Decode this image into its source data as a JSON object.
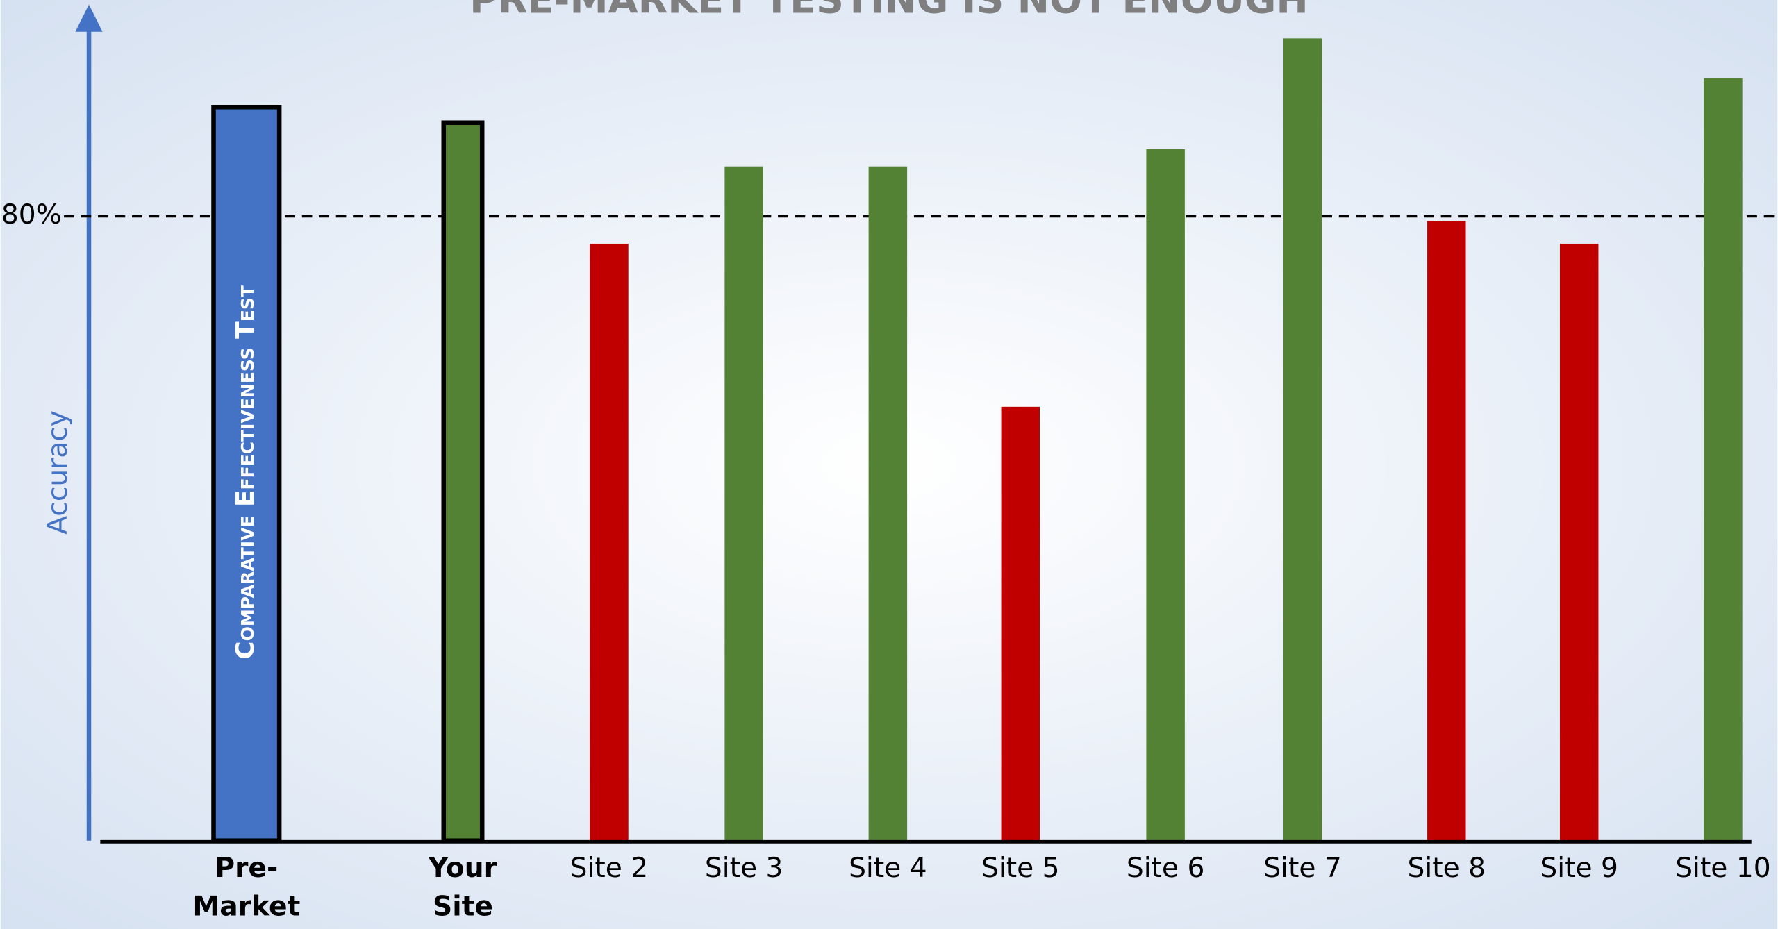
{
  "chart_data": {
    "type": "bar",
    "title": "PRE-MARKET TESTING IS NOT ENOUGH",
    "y_label": "Accuracy",
    "bar_annotation": "Comparative Effectiveness Test",
    "categories": [
      "Pre-Market Testing",
      "Your Site",
      "Site 2",
      "Site 3",
      "Site 4",
      "Site 5",
      "Site 6",
      "Site 7",
      "Site 8",
      "Site 9",
      "Site 10"
    ],
    "values": [
      94,
      92,
      76.5,
      86.4,
      86.4,
      55.6,
      88.6,
      102.8,
      79.4,
      76.5,
      97.7
    ],
    "colors": [
      "#4472c4",
      "#548235",
      "#c00000",
      "#548235",
      "#548235",
      "#c00000",
      "#548235",
      "#548235",
      "#c00000",
      "#c00000",
      "#548235"
    ],
    "edgecolors": [
      "#000000",
      "#000000",
      null,
      null,
      null,
      null,
      null,
      null,
      null,
      null,
      null
    ],
    "ylim": [
      0,
      107
    ],
    "yticks": [
      {
        "value": 80,
        "label": "80%"
      }
    ],
    "grid": true
  }
}
